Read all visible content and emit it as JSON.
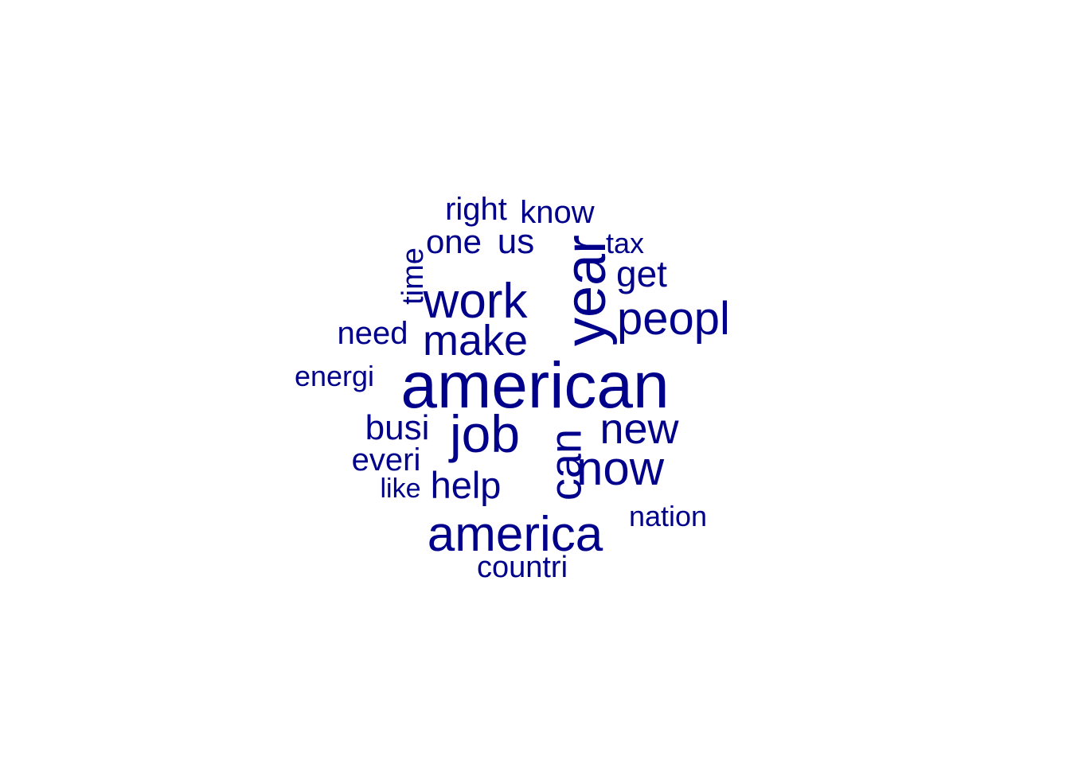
{
  "chart_data": {
    "type": "wordcloud",
    "color": "#00008b",
    "words": [
      {
        "text": "american",
        "rotated": false
      },
      {
        "text": "year",
        "rotated": true
      },
      {
        "text": "job",
        "rotated": false
      },
      {
        "text": "can",
        "rotated": true
      },
      {
        "text": "america",
        "rotated": false
      },
      {
        "text": "work",
        "rotated": false
      },
      {
        "text": "now",
        "rotated": false
      },
      {
        "text": "peopl",
        "rotated": false
      },
      {
        "text": "make",
        "rotated": false
      },
      {
        "text": "new",
        "rotated": false
      },
      {
        "text": "help",
        "rotated": false
      },
      {
        "text": "get",
        "rotated": false
      },
      {
        "text": "us",
        "rotated": false
      },
      {
        "text": "busi",
        "rotated": false
      },
      {
        "text": "one",
        "rotated": false
      },
      {
        "text": "need",
        "rotated": false
      },
      {
        "text": "everi",
        "rotated": false
      },
      {
        "text": "know",
        "rotated": false
      },
      {
        "text": "right",
        "rotated": false
      },
      {
        "text": "time",
        "rotated": true
      },
      {
        "text": "countri",
        "rotated": false
      },
      {
        "text": "nation",
        "rotated": false
      },
      {
        "text": "tax",
        "rotated": false
      },
      {
        "text": "energi",
        "rotated": false
      },
      {
        "text": "like",
        "rotated": false
      }
    ]
  }
}
